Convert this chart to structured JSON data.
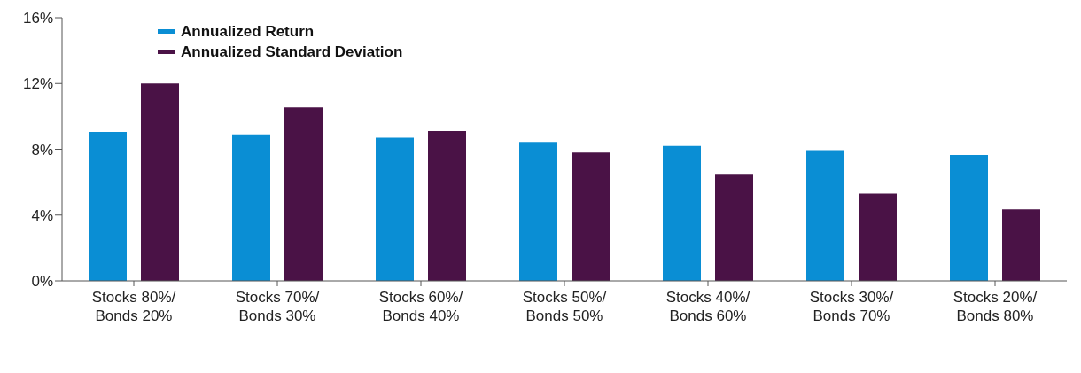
{
  "chart_data": {
    "type": "bar",
    "categories": [
      "Stocks 80%/\nBonds 20%",
      "Stocks 70%/\nBonds 30%",
      "Stocks 60%/\nBonds 40%",
      "Stocks 50%/\nBonds 50%",
      "Stocks 40%/\nBonds 60%",
      "Stocks 30%/\nBonds 70%",
      "Stocks 20%/\nBonds 80%"
    ],
    "series": [
      {
        "name": "Annualized Return",
        "color": "#0a8ed4",
        "values": [
          9.05,
          8.9,
          8.7,
          8.45,
          8.2,
          7.95,
          7.65
        ]
      },
      {
        "name": "Annualized Standard Deviation",
        "color": "#4a1246",
        "values": [
          12.0,
          10.55,
          9.1,
          7.8,
          6.5,
          5.3,
          4.35
        ]
      }
    ],
    "ylim": [
      0,
      16
    ],
    "yticks": [
      {
        "value": 0,
        "label": "0%"
      },
      {
        "value": 4,
        "label": "4%"
      },
      {
        "value": 8,
        "label": "8%"
      },
      {
        "value": 12,
        "label": "12%"
      },
      {
        "value": 16,
        "label": "16%"
      }
    ],
    "grid": false,
    "legend": "top left"
  }
}
